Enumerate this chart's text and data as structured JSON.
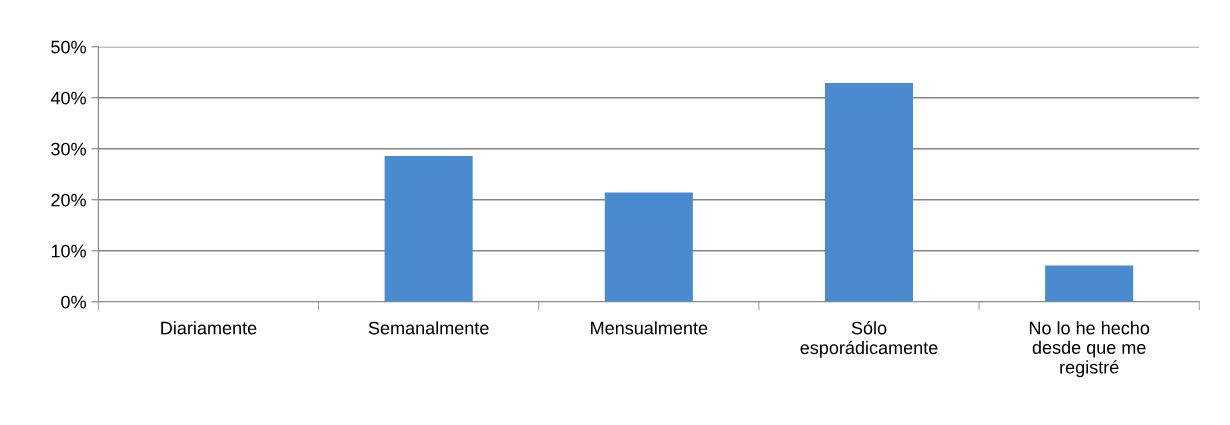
{
  "chart_data": {
    "type": "bar",
    "categories": [
      "Diariamente",
      "Semanalmente",
      "Mensualmente",
      "Sólo\nesporádicamente",
      "No lo he hecho\ndesde que me\nregistré"
    ],
    "values": [
      0,
      28.6,
      21.4,
      42.9,
      7.1
    ],
    "color": "#4a8bcf",
    "ylim": [
      0,
      50
    ],
    "yticks": [
      {
        "value": 0,
        "label": "0%"
      },
      {
        "value": 10,
        "label": "10%"
      },
      {
        "value": 20,
        "label": "20%"
      },
      {
        "value": 30,
        "label": "30%"
      },
      {
        "value": 40,
        "label": "40%"
      },
      {
        "value": 50,
        "label": "50%"
      }
    ],
    "grid": "y"
  }
}
